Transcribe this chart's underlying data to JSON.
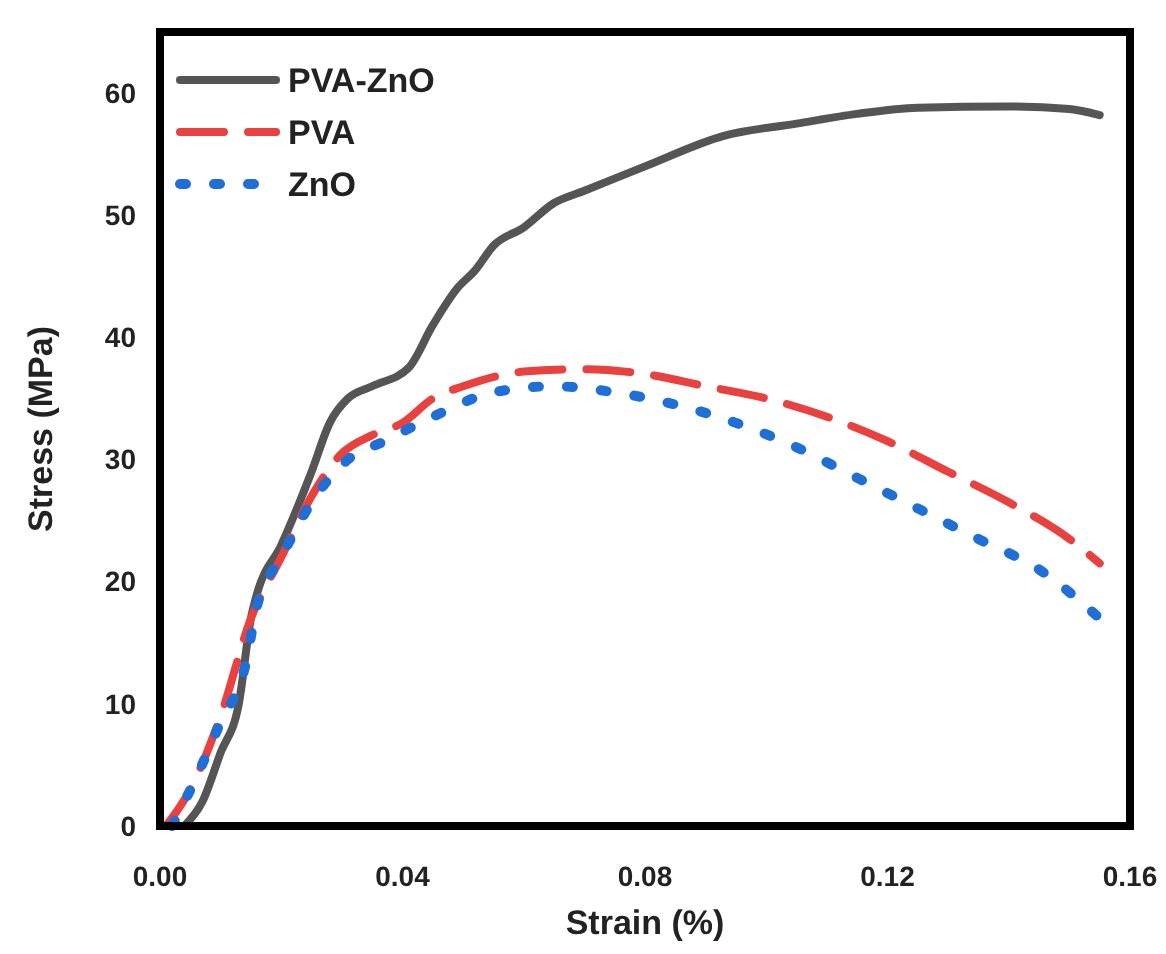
{
  "chart_data": {
    "type": "line",
    "xlabel": "Strain (%)",
    "ylabel": "Stress (MPa)",
    "xlim": [
      0,
      0.16
    ],
    "ylim": [
      0,
      65
    ],
    "xticks": [
      {
        "value": 0,
        "label": "0.00"
      },
      {
        "value": 0.04,
        "label": "0.04"
      },
      {
        "value": 0.08,
        "label": "0.08"
      },
      {
        "value": 0.12,
        "label": "0.12"
      },
      {
        "value": 0.16,
        "label": "0.16"
      }
    ],
    "yticks": [
      0,
      10,
      20,
      30,
      40,
      50,
      60
    ],
    "grid": false,
    "legend": "top left",
    "series": [
      {
        "name": "PVA-ZnO",
        "color": "#555555",
        "line_style": "solid",
        "x": [
          0.004,
          0.007,
          0.01,
          0.013,
          0.015,
          0.016,
          0.02,
          0.025,
          0.028,
          0.031,
          0.035,
          0.041,
          0.045,
          0.049,
          0.052,
          0.055,
          0.06,
          0.065,
          0.07,
          0.08,
          0.093,
          0.105,
          0.115,
          0.125,
          0.14,
          0.15,
          0.155
        ],
        "values": [
          0,
          2,
          6,
          10,
          17,
          19,
          23,
          29,
          33,
          35,
          36,
          37.5,
          41,
          44,
          45.5,
          47.5,
          49,
          51,
          52,
          54,
          56.5,
          57.5,
          58.3,
          58.8,
          58.9,
          58.7,
          58.2
        ]
      },
      {
        "name": "PVA",
        "color": "#e8413f",
        "line_style": "dashed",
        "x": [
          0.001,
          0.005,
          0.01,
          0.015,
          0.02,
          0.025,
          0.03,
          0.035,
          0.04,
          0.045,
          0.05,
          0.06,
          0.07,
          0.08,
          0.09,
          0.1,
          0.11,
          0.12,
          0.13,
          0.14,
          0.15,
          0.155
        ],
        "values": [
          0,
          3,
          9,
          17,
          22,
          27,
          30.5,
          32,
          33,
          35,
          36,
          37.2,
          37.4,
          37,
          36,
          35,
          33.5,
          31.5,
          29,
          26.5,
          23.5,
          21.5
        ]
      },
      {
        "name": "ZnO",
        "color": "#1f6fd6",
        "line_style": "dotted",
        "x": [
          0.002,
          0.006,
          0.01,
          0.014,
          0.016,
          0.02,
          0.025,
          0.031,
          0.037,
          0.045,
          0.055,
          0.065,
          0.075,
          0.085,
          0.095,
          0.105,
          0.115,
          0.125,
          0.135,
          0.145,
          0.155
        ],
        "values": [
          0,
          4,
          8.5,
          13,
          18,
          22,
          26.5,
          30,
          31.5,
          33.5,
          35.5,
          36,
          35.5,
          34.5,
          33,
          31,
          28.5,
          26,
          23.5,
          21,
          17
        ]
      }
    ]
  }
}
